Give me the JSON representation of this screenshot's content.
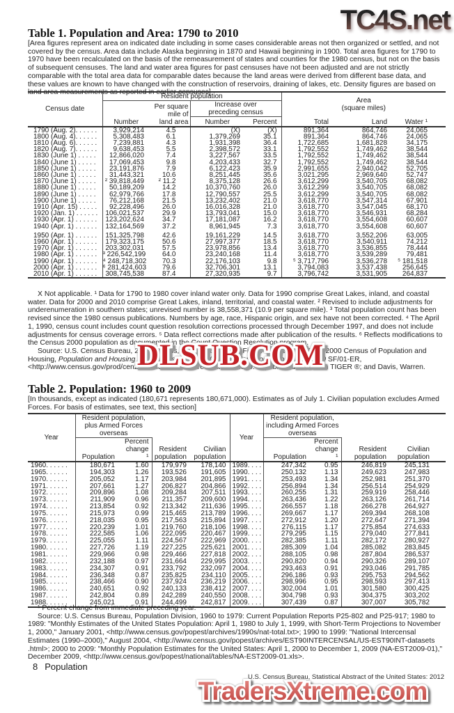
{
  "watermarks": {
    "top": "TC4S.net",
    "middle": "DLSUB.COM",
    "bottom": "TradersXtreme.com"
  },
  "table1": {
    "title": "Table 1. Population and Area: 1790 to 2010",
    "bracket_note": "[Area figures represent area on indicated date including in some cases considerable areas not then organized or settled, and not covered by the census. Area data include Alaska beginning in 1870 and Hawaii beginning in 1900. Total area figures for 1790 to 1970 have been recalculated on the basis of the remeasurement of states and counties for the 1980 census, but not on the basis of subsequent censuses. The land and water area figures for past censuses have not been adjusted and are not strictly comparable with the total area data for comparable dates because the land areas were derived from different base data, and these values are known to have changed with the construction of reservoirs, draining of lakes, etc. Density figures are based on land area measurements as reported in earlier censuses]",
    "col_census_date": "Census date",
    "grp_resident": "Resident population",
    "grp_area": "Area\n(square miles)",
    "col_number": "Number",
    "col_per_sq_mile": "Per square\nmile of\nland area",
    "grp_increase": "Increase over\npreceding census",
    "col_inc_number": "Number",
    "col_inc_percent": "Percent",
    "col_total": "Total",
    "col_land": "Land",
    "col_water": "Water ¹",
    "rows": [
      [
        "1790 (Aug. 2). . . . . .",
        "3,929,214",
        "4.5",
        "(X)",
        "(X)",
        "891,364",
        "864,746",
        "24,065"
      ],
      [
        "1800 (Aug. 4). . . . . .",
        "5,308,483",
        "6.1",
        "1,379,269",
        "35.1",
        "891,364",
        "864,746",
        "24,065"
      ],
      [
        "1810 (Aug. 6). . . . . .",
        "7,239,881",
        "4.3",
        "1,931,398",
        "36.4",
        "1,722,685",
        "1,681,828",
        "34,175"
      ],
      [
        "1820 (Aug. 7). . . . . .",
        "9,638,453",
        "5.5",
        "2,398,572",
        "33.1",
        "1,792,552",
        "1,749,462",
        "38,544"
      ],
      [
        "1830 (June 1) . . . . .",
        "12,866,020",
        "7.4",
        "3,227,567",
        "33.5",
        "1,792,552",
        "1,749,462",
        "38,544"
      ],
      [
        "1840 (June 1) . . . . .",
        "17,069,453",
        "9.8",
        "4,203,433",
        "32.7",
        "1,792,552",
        "1,749,462",
        "38,544"
      ],
      [
        "1850 (June 1) . . . . .",
        "23,191,876",
        "7.9",
        "6,122,423",
        "35.9",
        "2,991,655",
        "2,940,042",
        "52,705"
      ],
      [
        "1860 (June 1) . . . . .",
        "31,443,321",
        "10.6",
        "8,251,445",
        "35.6",
        "3,021,295",
        "2,969,640",
        "52,747"
      ],
      [
        "1870 (June 1) . . . . .",
        "² 39,818,449",
        "² 11.2",
        "8,375,128",
        "26.6",
        "3,612,299",
        "3,540,705",
        "68,082"
      ],
      [
        "1880 (June 1) . . . . .",
        "50,189,209",
        "14.2",
        "10,370,760",
        "26.0",
        "3,612,299",
        "3,540,705",
        "68,082"
      ],
      [
        "1890 (June 1) . . . . .",
        "62,979,766",
        "17.8",
        "12,790,557",
        "25.5",
        "3,612,299",
        "3,540,705",
        "68,082"
      ],
      [
        "1900 (June 1) . . . . .",
        "76,212,168",
        "21.5",
        "13,232,402",
        "21.0",
        "3,618,770",
        "3,547,314",
        "67,901"
      ],
      [
        "1910 (Apr. 15) . . . . .",
        "92,228,496",
        "26.0",
        "16,016,328",
        "21.0",
        "3,618,770",
        "3,547,045",
        "68,170"
      ],
      [
        "1920 (Jan. 1) . . . . . .",
        "106,021,537",
        "29.9",
        "13,793,041",
        "15.0",
        "3,618,770",
        "3,546,931",
        "68,284"
      ],
      [
        "1930 (Apr. 1) . . . . . .",
        "123,202,624",
        "34.7",
        "17,181,087",
        "16.2",
        "3,618,770",
        "3,554,608",
        "60,607"
      ],
      [
        "1940 (Apr. 1) . . . . . .",
        "132,164,569",
        "37.2",
        "8,961,945",
        "7.3",
        "3,618,770",
        "3,554,608",
        "60,607"
      ],
      [
        "1950 (Apr. 1) . . . . . .",
        "151,325,798",
        "42.6",
        "19,161,229",
        "14.5",
        "3,618,770",
        "3,552,206",
        "63,005"
      ],
      [
        "1960 (Apr. 1) . . . . . .",
        "179,323,175",
        "50.6",
        "27,997,377",
        "18.5",
        "3,618,770",
        "3,540,911",
        "74,212"
      ],
      [
        "1970 (Apr. 1) . . . . . .",
        "203,302,031",
        "57.5",
        "23,978,856",
        "13.4",
        "3,618,770",
        "3,536,855",
        "78,444"
      ],
      [
        "1980 (Apr. 1) . . . . . .",
        "³ 226,542,199",
        "64.0",
        "23,240,168",
        "11.4",
        "3,618,770",
        "3,539,289",
        "79,481"
      ],
      [
        "1990 (Apr. 1) . . . . . .",
        "⁴ 248,718,302",
        "70.3",
        "22,176,103",
        "9.8",
        "⁵ 3,717,796",
        "3,536,278",
        "⁵ 181,518"
      ],
      [
        "2000 (Apr. 1) . . . . . .",
        "⁶ 281,424,603",
        "79.6",
        "32,706,301",
        "13.1",
        "3,794,083",
        "3,537,438",
        "256,645"
      ],
      [
        "2010 (Apr. 1) . . . . . .",
        "308,745,538",
        "87.4",
        "27,320,935",
        "9.7",
        "3,796,742",
        "3,531,905",
        "264,837"
      ]
    ],
    "footnotes": "X Not applicable. ¹ Data for 1790 to 1980 cover inland water only. Data for 1990 comprise Great Lakes, inland, and coastal water. Data for 2000 and 2010 comprise Great Lakes, inland, territorial, and coastal water. ² Revised to include adjustments for underenumeration in southern states; unrevised number is 38,558,371 (10.9 per square mile). ³ Total population count has been revised since the 1980 census publications. Numbers by age, race, Hispanic origin, and sex have not been corrected. ⁴ The April 1, 1990, census count includes count question resolution corrections processed through December 1997, and does not include adjustments for census coverage errors. ⁵ Data reflect corrections made after publication of the results. ⁶ Reflects modifications to the Census 2000 population as documented in the Count Question Resolution program.",
    "source_parts": [
      "Source: U.S. Census Bureau, 2010 Census, National Summary File of Redistricting Data; 2000 Census of Population and Housing, ",
      "Population and Housing Unit Counts; Census 2000 Resident Population Data, 2000",
      " SF/01-ER, <http://www.census.gov/prod/cen2000/index.html>; area data for 1990: unpublished data from TIGER ®; and Davis, Warren."
    ]
  },
  "table2": {
    "title": "Table 2. Population: 1960 to 2009",
    "bracket_note": "[In thousands, except as indicated (180,671 represents 180,671,000). Estimates as of July 1. Civilian population excludes Armed Forces. For basis of estimates, see text, this section]",
    "col_year": "Year",
    "grp_left": "Resident population,\nplus Armed Forces\noverseas",
    "grp_right": "Resident population,\nincluding Armed Forces\noverseas",
    "col_population": "Population",
    "col_pct_change": "Percent\nchange ¹",
    "col_resident": "Resident\npopulation",
    "col_civilian": "Civilian\npopulation",
    "rows": [
      [
        "1960. . . . . .",
        "180,671",
        "1.60",
        "179,979",
        "178,140",
        "1989. . . . .",
        "247,342",
        "0.95",
        "246,819",
        "245,131"
      ],
      [
        "1965. . . . . .",
        "194,303",
        "1.26",
        "193,526",
        "191,605",
        "1990. . . . .",
        "250,132",
        "1.13",
        "249,623",
        "247,983"
      ],
      [
        "1970. . . . . .",
        "205,052",
        "1.17",
        "203,984",
        "201,895",
        "1991. . . . .",
        "253,493",
        "1.34",
        "252,981",
        "251,370"
      ],
      [
        "1971. . . . . .",
        "207,661",
        "1.27",
        "206,827",
        "204,866",
        "1992. . . . .",
        "256,894",
        "1.34",
        "256,514",
        "254,929"
      ],
      [
        "1972. . . . . .",
        "209,896",
        "1.08",
        "209,284",
        "207,511",
        "1993. . . . .",
        "260,255",
        "1.31",
        "259,919",
        "258,446"
      ],
      [
        "1973. . . . . .",
        "211,909",
        "0.96",
        "211,357",
        "209,600",
        "1994. . . . .",
        "263,436",
        "1.22",
        "263,126",
        "261,714"
      ],
      [
        "1974. . . . . .",
        "213,854",
        "0.92",
        "213,342",
        "211,636",
        "1995. . . . .",
        "266,557",
        "1.18",
        "266,278",
        "264,927"
      ],
      [
        "1975. . . . . .",
        "215,973",
        "0.99",
        "215,465",
        "213,789",
        "1996. . . . .",
        "269,667",
        "1.17",
        "269,394",
        "268,108"
      ],
      [
        "1976. . . . . .",
        "218,035",
        "0.95",
        "217,563",
        "215,894",
        "1997. . . . .",
        "272,912",
        "1.20",
        "272,647",
        "271,394"
      ],
      [
        "1977. . . . . .",
        "220,239",
        "1.01",
        "219,760",
        "218,106",
        "1998. . . . .",
        "276,115",
        "1.17",
        "275,854",
        "274,633"
      ],
      [
        "1978. . . . . .",
        "222,585",
        "1.06",
        "222,095",
        "220,467",
        "1999. . . . .",
        "279,295",
        "1.15",
        "279,040",
        "277,841"
      ],
      [
        "1979. . . . . .",
        "225,055",
        "1.11",
        "224,567",
        "222,969",
        "2000. . . . .",
        "282,385",
        "1.11",
        "282,172",
        "280,927"
      ],
      [
        "1980. . . . . .",
        "227,726",
        "1.19",
        "227,225",
        "225,621",
        "2001. . . . .",
        "285,309",
        "1.04",
        "285,082",
        "283,845"
      ],
      [
        "1981. . . . . .",
        "229,966",
        "0.98",
        "229,466",
        "227,818",
        "2002. . . . .",
        "288,105",
        "0.98",
        "287,804",
        "286,537"
      ],
      [
        "1982. . . . . .",
        "232,188",
        "0.97",
        "231,664",
        "229,995",
        "2003. . . . .",
        "290,820",
        "0.94",
        "290,326",
        "289,107"
      ],
      [
        "1983. . . . . .",
        "234,307",
        "0.91",
        "233,792",
        "232,097",
        "2004. . . . .",
        "293,463",
        "0.91",
        "293,046",
        "291,785"
      ],
      [
        "1984. . . . . .",
        "236,348",
        "0.87",
        "235,825",
        "234,110",
        "2005. . . . .",
        "296,186",
        "0.93",
        "295,753",
        "294,562"
      ],
      [
        "1985. . . . . .",
        "238,466",
        "0.90",
        "237,924",
        "236,219",
        "2006. . . . .",
        "298,996",
        "0.95",
        "298,593",
        "297,413"
      ],
      [
        "1986. . . . . .",
        "240,651",
        "0.92",
        "240,133",
        "238,412",
        "2007. . . . .",
        "302,004",
        "1.01",
        "301,580",
        "300,425"
      ],
      [
        "1987. . . . . .",
        "242,804",
        "0.89",
        "242,289",
        "240,550",
        "2008. . . . .",
        "304,798",
        "0.93",
        "304,375",
        "303,202"
      ],
      [
        "1988. . . . . .",
        "245,021",
        "0.91",
        "244,499",
        "242,817",
        "2009. . . . .",
        "307,439",
        "0.87",
        "307,007",
        "305,782"
      ]
    ],
    "footnote": "¹ Percent change from immediate preceding year.",
    "source": "Source: U.S. Census Bureau, Population Division, 1960 to 1979: Current Population Reports P25-802 and P25-917; 1980 to 1989: \"Monthly Estimates of the United States Population: April 1, 1980 to July 1, 1999, with Short-Term Projections to November 1, 2000,\" January 2001, <http://www.census.gov/popest/archives/1990s/nat-total.txt>; 1990 to 1999: \"National Intercensal Estimates (1990–2000),\" August 2004, <http://www.census.gov/popest/archives/EST90INTERCENSAL/US-EST90INT-datasets .html>; 2000 to 2009: \"Monthly Population Estimates for the United States: April 1, 2000 to December 1, 2009 (NA-EST2009-01),\" December 2009, <http://www.census.gov/popest/national/tables/NA-EST2009-01.xls>."
  },
  "footer": {
    "page_number": "8",
    "section": "Population",
    "credit": "U.S. Census Bureau, Statistical Abstract of the United States: 2012"
  }
}
